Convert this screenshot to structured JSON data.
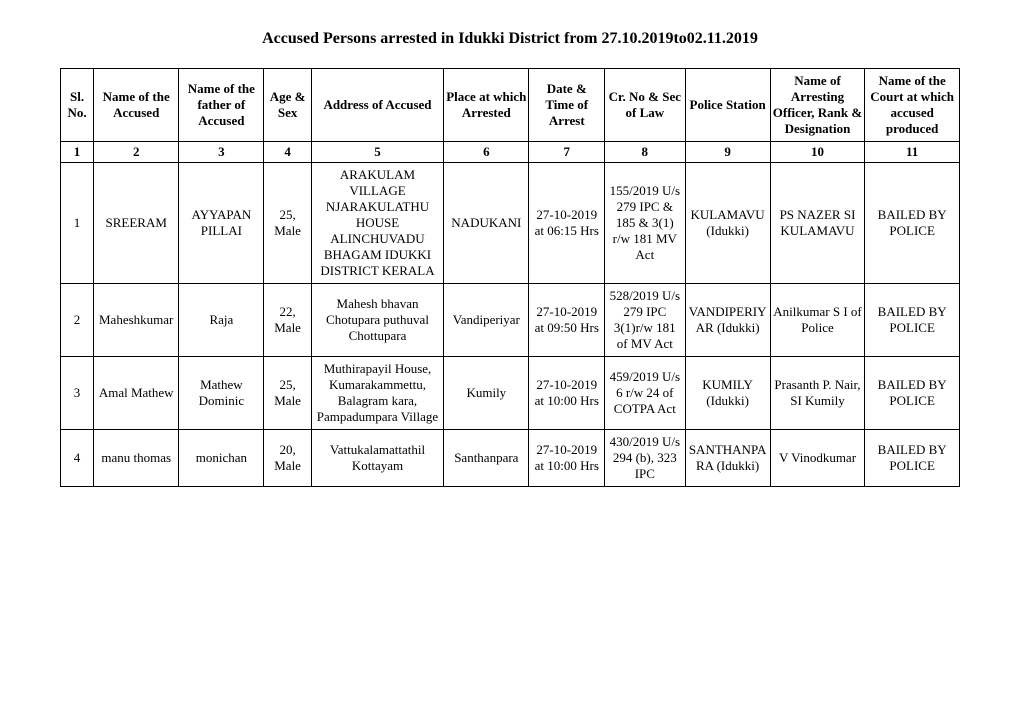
{
  "title": "Accused Persons arrested in   Idukki  District from   27.10.2019to02.11.2019",
  "headers": {
    "c1": "Sl. No.",
    "c2": "Name of the Accused",
    "c3": "Name of the father of Accused",
    "c4": "Age & Sex",
    "c5": "Address of Accused",
    "c6": "Place at which Arrested",
    "c7": "Date & Time of Arrest",
    "c8": "Cr. No & Sec of Law",
    "c9": "Police Station",
    "c10": "Name of Arresting Officer, Rank & Designation",
    "c11": "Name of the Court at which accused produced"
  },
  "numrow": {
    "c1": "1",
    "c2": "2",
    "c3": "3",
    "c4": "4",
    "c5": "5",
    "c6": "6",
    "c7": "7",
    "c8": "8",
    "c9": "9",
    "c10": "10",
    "c11": "11"
  },
  "rows": [
    {
      "c1": "1",
      "c2": "SREERAM",
      "c3": "AYYAPAN PILLAI",
      "c4": "25, Male",
      "c5": "ARAKULAM VILLAGE NJARAKULATHU HOUSE ALINCHUVADU BHAGAM IDUKKI DISTRICT KERALA",
      "c6": "NADUKANI",
      "c7": "27-10-2019 at 06:15 Hrs",
      "c8": "155/2019 U/s 279 IPC & 185 & 3(1) r/w 181 MV Act",
      "c9": "KULAMAVU (Idukki)",
      "c10": "PS NAZER SI KULAMAVU",
      "c11": "BAILED BY POLICE"
    },
    {
      "c1": "2",
      "c2": "Maheshkumar",
      "c3": "Raja",
      "c4": "22, Male",
      "c5": "Mahesh bhavan Chotupara puthuval Chottupara",
      "c6": "Vandiperiyar",
      "c7": "27-10-2019 at 09:50 Hrs",
      "c8": "528/2019 U/s 279 IPC 3(1)r/w 181 of MV Act",
      "c9": "VANDIPERIYAR (Idukki)",
      "c10": "Anilkumar S I of Police",
      "c11": "BAILED BY POLICE"
    },
    {
      "c1": "3",
      "c2": "Amal Mathew",
      "c3": "Mathew Dominic",
      "c4": "25, Male",
      "c5": "Muthirapayil House, Kumarakammettu, Balagram kara, Pampadumpara Village",
      "c6": "Kumily",
      "c7": "27-10-2019 at 10:00 Hrs",
      "c8": "459/2019 U/s 6 r/w 24 of COTPA Act",
      "c9": "KUMILY (Idukki)",
      "c10": "Prasanth P. Nair, SI Kumily",
      "c11": "BAILED BY POLICE"
    },
    {
      "c1": "4",
      "c2": "manu thomas",
      "c3": "monichan",
      "c4": "20, Male",
      "c5": "Vattukalamattathil Kottayam",
      "c6": "Santhanpara",
      "c7": "27-10-2019 at 10:00 Hrs",
      "c8": "430/2019 U/s 294 (b), 323 IPC",
      "c9": "SANTHANPARA (Idukki)",
      "c10": "V Vinodkumar",
      "c11": "BAILED BY POLICE"
    }
  ]
}
